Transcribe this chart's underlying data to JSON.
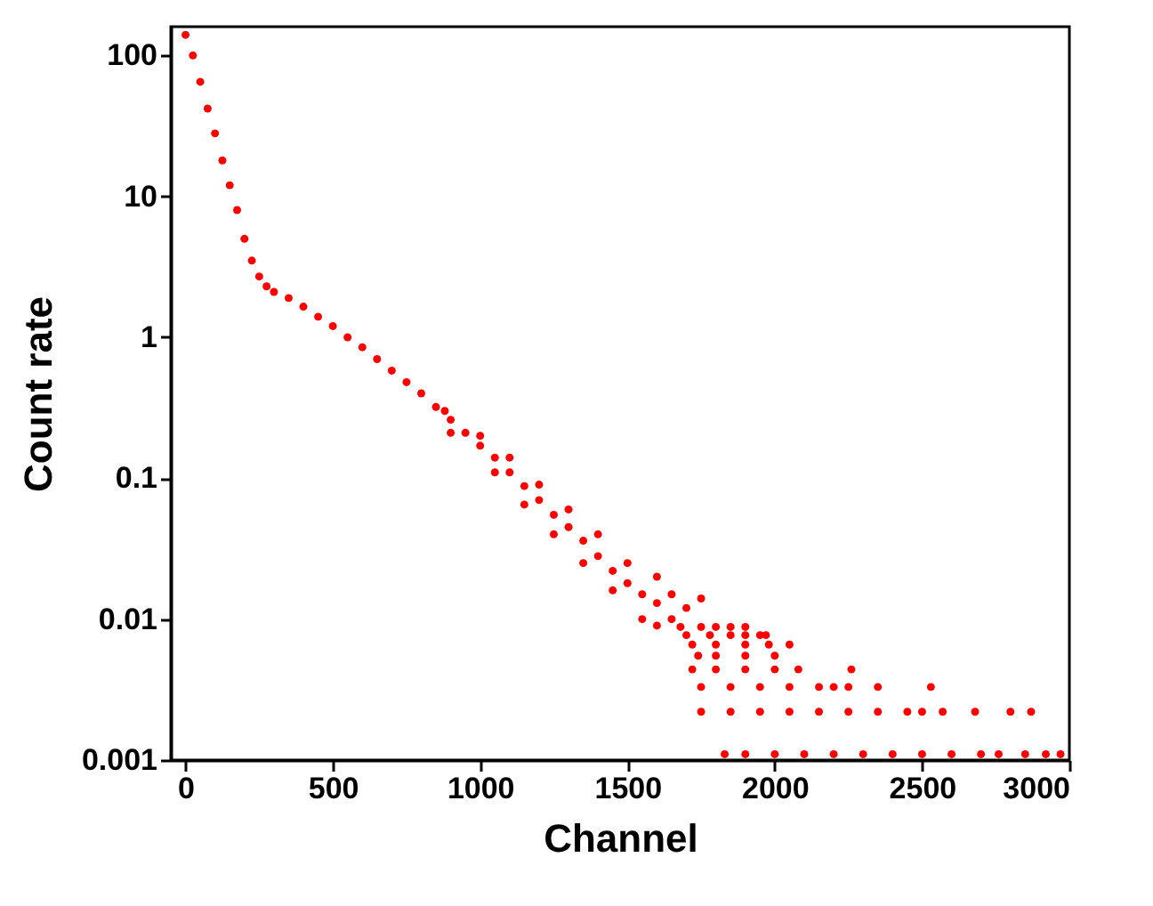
{
  "chart_data": {
    "type": "scatter",
    "xlabel": "Channel",
    "ylabel": "Count rate",
    "log": "y",
    "marker": "circle",
    "grid": false,
    "xlim": [
      -50,
      3000
    ],
    "xticks": [
      0,
      500,
      1000,
      1500,
      2000,
      2500,
      3000
    ],
    "ylim": [
      0.001,
      160
    ],
    "yticks": [
      0.001,
      0.01,
      0.1,
      1,
      10,
      100
    ],
    "series": [
      {
        "color": "#ff0000",
        "x": [
          0,
          25,
          50,
          75,
          100,
          125,
          150,
          175,
          200,
          225,
          250,
          275,
          300,
          350,
          400,
          450,
          500,
          550,
          600,
          650,
          700,
          750,
          800,
          850,
          900,
          950,
          1000,
          1050,
          1100,
          1150,
          1200,
          1250,
          1300,
          1350,
          1400,
          1450,
          1500,
          1550,
          1600,
          1650,
          880,
          900,
          1000,
          1050,
          1100,
          1150,
          1200,
          1250,
          1300,
          1350,
          1400,
          1450,
          1500,
          1550,
          1600,
          1650,
          1600,
          1700,
          1750,
          1680,
          1750,
          1800,
          1850,
          1900,
          1700,
          1780,
          1850,
          1900,
          1950,
          1970,
          1720,
          1800,
          1900,
          1980,
          2050,
          1740,
          1800,
          1900,
          2000,
          1720,
          1800,
          1900,
          2000,
          2080,
          2260,
          1750,
          1850,
          1950,
          2050,
          2150,
          2200,
          2250,
          2350,
          2530,
          1750,
          1850,
          1950,
          2050,
          2150,
          2250,
          2350,
          2450,
          2500,
          2570,
          2680,
          2800,
          2870,
          1830,
          1900,
          2000,
          2100,
          2200,
          2300,
          2400,
          2500,
          2600,
          2700,
          2760,
          2850,
          2920,
          2970
        ],
        "values": [
          140,
          100,
          65,
          42,
          28,
          18,
          12,
          8,
          5,
          3.5,
          2.7,
          2.3,
          2.1,
          1.9,
          1.65,
          1.4,
          1.2,
          1.0,
          0.85,
          0.7,
          0.58,
          0.48,
          0.4,
          0.32,
          0.26,
          0.21,
          0.17,
          0.14,
          0.11,
          0.088,
          0.07,
          0.055,
          0.045,
          0.036,
          0.028,
          0.022,
          0.018,
          0.015,
          0.013,
          0.01,
          0.3,
          0.21,
          0.2,
          0.11,
          0.14,
          0.065,
          0.09,
          0.04,
          0.06,
          0.025,
          0.04,
          0.016,
          0.025,
          0.01,
          0.02,
          0.015,
          0.009,
          0.012,
          0.014,
          0.0088,
          0.0088,
          0.0088,
          0.0088,
          0.0088,
          0.0077,
          0.0077,
          0.0077,
          0.0077,
          0.0077,
          0.0077,
          0.0066,
          0.0066,
          0.0066,
          0.0066,
          0.0066,
          0.0055,
          0.0055,
          0.0055,
          0.0055,
          0.0044,
          0.0044,
          0.0044,
          0.0044,
          0.0044,
          0.0044,
          0.0033,
          0.0033,
          0.0033,
          0.0033,
          0.0033,
          0.0033,
          0.0033,
          0.0033,
          0.0033,
          0.0022,
          0.0022,
          0.0022,
          0.0022,
          0.0022,
          0.0022,
          0.0022,
          0.0022,
          0.0022,
          0.0022,
          0.0022,
          0.0022,
          0.0022,
          0.0011,
          0.0011,
          0.0011,
          0.0011,
          0.0011,
          0.0011,
          0.0011,
          0.0011,
          0.0011,
          0.0011,
          0.0011,
          0.0011,
          0.0011,
          0.0011
        ]
      }
    ]
  }
}
